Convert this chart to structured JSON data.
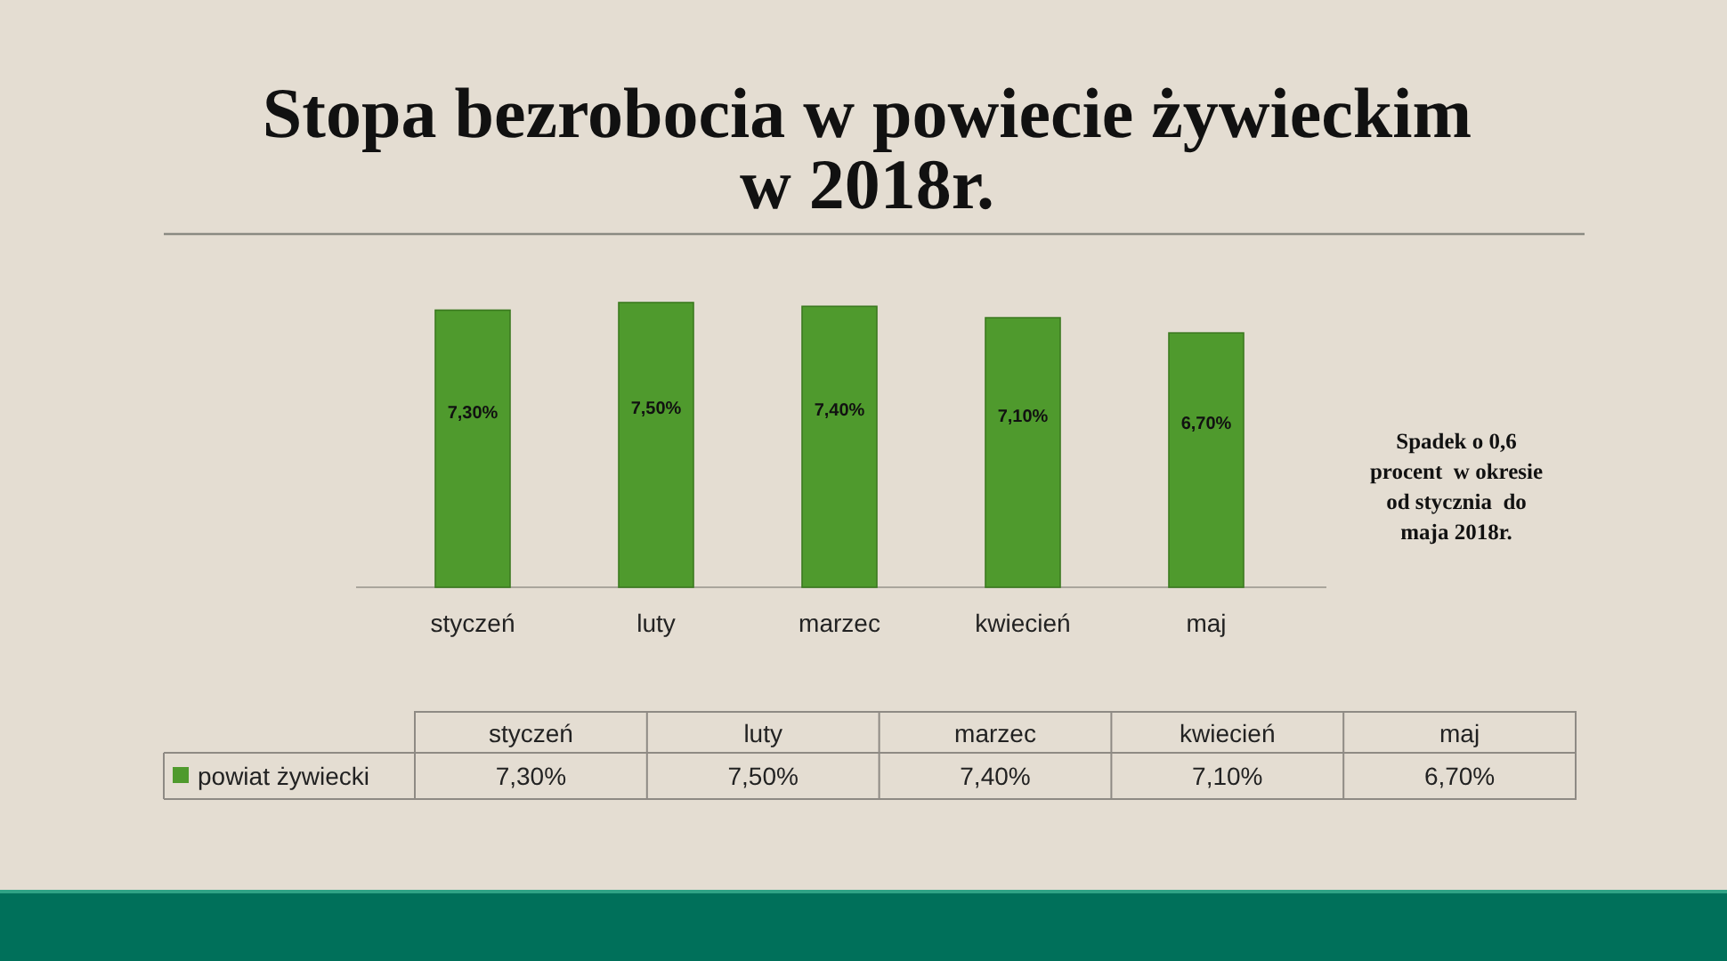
{
  "chart_data": {
    "type": "bar",
    "title": "Stopa bezrobocia w powiecie żywieckim\nw 2018r.",
    "categories": [
      "styczeń",
      "luty",
      "marzec",
      "kwiecień",
      "maj"
    ],
    "series": [
      {
        "name": "powiat żywiecki",
        "color": "#4f9a2d",
        "values": [
          7.3,
          7.5,
          7.4,
          7.1,
          6.7
        ],
        "value_labels": [
          "7,30%",
          "7,50%",
          "7,40%",
          "7,10%",
          "6,70%"
        ]
      }
    ],
    "annotations": [
      "Spadek o 0,6\nprocent  w okresie\nod stycznia  do\nmaja 2018r."
    ],
    "legend": "bottom"
  }
}
